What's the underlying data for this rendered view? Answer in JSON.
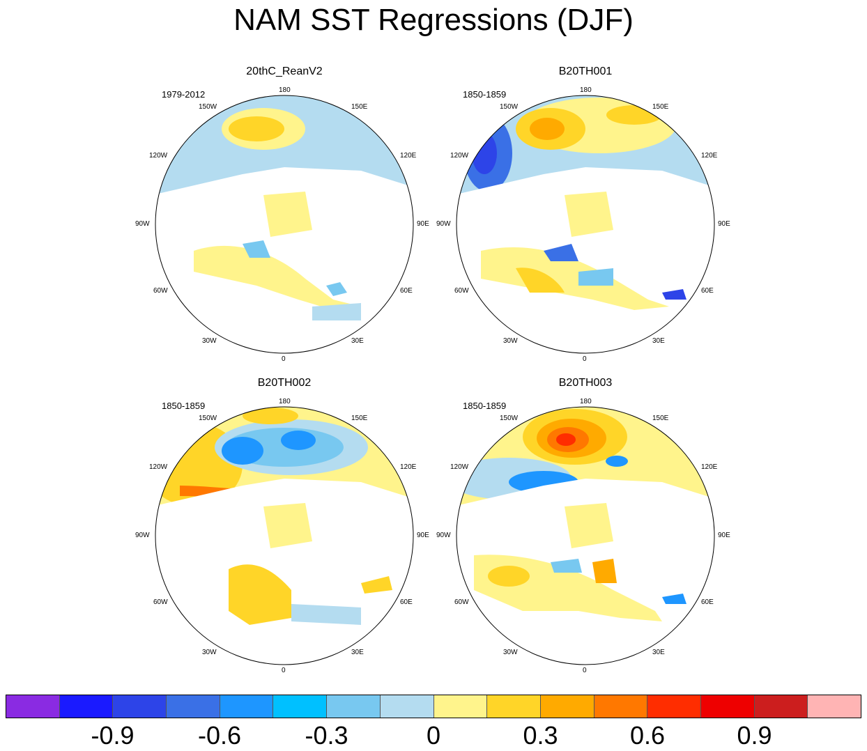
{
  "title": "NAM SST Regressions (DJF)",
  "lon_labels": {
    "top": "180",
    "bottom": "0",
    "upper_left": "150W",
    "upper_right": "150E",
    "left_upper": "120W",
    "right_upper": "120E",
    "left": "90W",
    "right": "90E",
    "left_lower": "60W",
    "right_lower": "60E",
    "lower_left": "30W",
    "lower_right": "30E"
  },
  "panels": [
    {
      "title": "20thC_ReanV2",
      "period": "1979-2012"
    },
    {
      "title": "B20TH001",
      "period": "1850-1859"
    },
    {
      "title": "B20TH002",
      "period": "1850-1859"
    },
    {
      "title": "B20TH003",
      "period": "1850-1859"
    }
  ],
  "colorbar": {
    "colors": [
      "#8a2be2",
      "#1a1aff",
      "#2d44e8",
      "#3a70e6",
      "#1e96ff",
      "#00c0ff",
      "#78c8f0",
      "#b4dcf0",
      "#fff48c",
      "#ffd528",
      "#ffaa00",
      "#ff7800",
      "#ff2d00",
      "#ee0000",
      "#cc1e1e",
      "#ffb4b4"
    ],
    "labels": [
      "-0.9",
      "-0.6",
      "-0.3",
      "0",
      "0.3",
      "0.6",
      "0.9"
    ]
  },
  "colors": {
    "land": "#ffffff",
    "coast": "#777777",
    "neg_weak": "#b4dcf0",
    "neg_mid": "#78c8f0",
    "neg_strong": "#1e96ff",
    "pos_weak": "#fff48c",
    "pos_mid": "#ffd528",
    "pos_strong": "#ffaa00",
    "pos_stronger": "#ff7800",
    "pos_max": "#ff2d00"
  }
}
